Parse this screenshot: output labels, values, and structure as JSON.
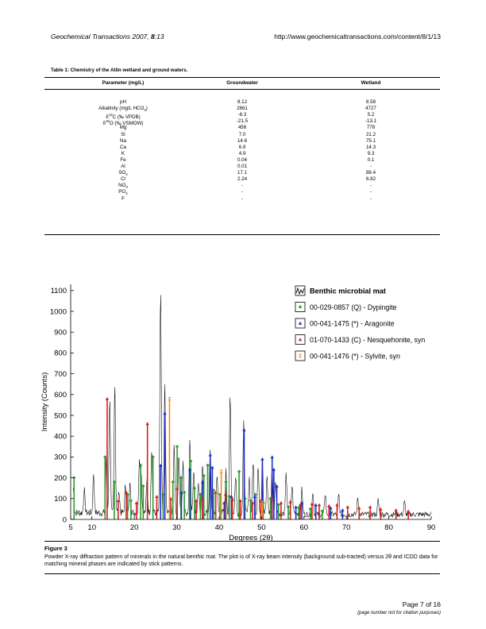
{
  "header": {
    "journal": "Geochemical Transactions",
    "year": "2007,",
    "volume": "8",
    "issue": ":13",
    "url": "http://www.geochemicaltransactions.com/content/8/1/13"
  },
  "table": {
    "caption": "Table 1: Chemistry of the Atlin wetland and ground waters.",
    "headers": [
      "Parameter (mg/L)",
      "Groundwater",
      "Wetland"
    ],
    "rows": [
      {
        "p": "pH",
        "g": "8.12",
        "w": "8.58"
      },
      {
        "p": "Alkalinity (mg/L HCO",
        "ps": "3",
        "pe": ")",
        "g": "2661",
        "w": "4727"
      },
      {
        "p": "δ",
        "pt": "13",
        "pe": "C (‰ VPDB)",
        "g": "-6.3",
        "w": "5.2"
      },
      {
        "p": "δ",
        "pt": "18",
        "pe": "O (‰ VSMOW)",
        "g": "-21.5",
        "w": "-13.1"
      },
      {
        "p": "Mg",
        "g": "456",
        "w": "778"
      },
      {
        "p": "Si",
        "g": "7.0",
        "w": "21.2"
      },
      {
        "p": "Na",
        "g": "14.6",
        "w": "75.1"
      },
      {
        "p": "Ca",
        "g": "6.9",
        "w": "14.3"
      },
      {
        "p": "K",
        "g": "4.9",
        "w": "9.3"
      },
      {
        "p": "Fe",
        "g": "0.04",
        "w": "0.1"
      },
      {
        "p": "Al",
        "g": "0.01",
        "w": "-"
      },
      {
        "p": "SO",
        "ps": "4",
        "g": "17.1",
        "w": "88.4"
      },
      {
        "p": "Cl",
        "g": "2.24",
        "w": "6.82"
      },
      {
        "p": "NO",
        "ps": "3",
        "g": "-",
        "w": "-"
      },
      {
        "p": "PO",
        "ps": "4",
        "g": "-",
        "w": "-"
      },
      {
        "p": "F",
        "g": "-",
        "w": "-"
      }
    ]
  },
  "chart_data": {
    "type": "line",
    "title": "",
    "xlabel": "Degrees (2θ)",
    "ylabel": "Intensity (Counts)",
    "xlim": [
      5,
      90
    ],
    "ylim": [
      0,
      1130
    ],
    "xticks": [
      5,
      10,
      20,
      30,
      40,
      50,
      60,
      70,
      80,
      90
    ],
    "yticks": [
      0,
      100,
      200,
      300,
      400,
      500,
      600,
      700,
      800,
      900,
      1000,
      1100
    ],
    "grid": false,
    "legend_position": "top-right",
    "colors": {
      "pattern": "#000000",
      "dypingite": "#2e9a2e",
      "aragonite": "#1f2fc8",
      "nesquehonite": "#d42020",
      "sylvite": "#f0901e"
    },
    "series": [
      {
        "name": "Benthic microbial mat",
        "kind": "pattern",
        "peaks": [
          [
            5.6,
            120
          ],
          [
            8.2,
            110
          ],
          [
            10.4,
            190
          ],
          [
            13.4,
            250
          ],
          [
            14.2,
            560
          ],
          [
            15.4,
            630
          ],
          [
            16.4,
            110
          ],
          [
            17.9,
            130
          ],
          [
            19.0,
            150
          ],
          [
            21.2,
            260
          ],
          [
            21.6,
            200
          ],
          [
            23.0,
            160
          ],
          [
            24.1,
            310
          ],
          [
            26.2,
            1080
          ],
          [
            27.2,
            620
          ],
          [
            29.4,
            330
          ],
          [
            30.5,
            290
          ],
          [
            31.5,
            240
          ],
          [
            33.1,
            370
          ],
          [
            34.0,
            210
          ],
          [
            35.1,
            150
          ],
          [
            36.1,
            230
          ],
          [
            37.9,
            300
          ],
          [
            39.5,
            190
          ],
          [
            41.6,
            200
          ],
          [
            42.6,
            560
          ],
          [
            43.9,
            180
          ],
          [
            45.8,
            430
          ],
          [
            47.1,
            170
          ],
          [
            48.0,
            250
          ],
          [
            49.2,
            220
          ],
          [
            50.2,
            270
          ],
          [
            51.3,
            170
          ],
          [
            52.5,
            230
          ],
          [
            53.3,
            150
          ],
          [
            55.8,
            190
          ],
          [
            57.2,
            130
          ],
          [
            59.5,
            110
          ],
          [
            62.1,
            110
          ],
          [
            65.0,
            100
          ],
          [
            68.2,
            95
          ],
          [
            72.7,
            80
          ],
          [
            77.5,
            70
          ],
          [
            83.7,
            60
          ]
        ],
        "baseline": 40
      },
      {
        "name": "00-029-0857 (Q) - Dypingite",
        "kind": "sticks",
        "marker": "diamond",
        "x": [
          5.8,
          13.1,
          15.3,
          18.4,
          19.2,
          21.5,
          22.1,
          24.4,
          26.8,
          29.1,
          30.1,
          31.0,
          31.8,
          33.3,
          34.2,
          35.6,
          36.4,
          37.3,
          38.7,
          40.2,
          41.6,
          42.4,
          43.1,
          44.7,
          46.1,
          47.4,
          48.5,
          50.4,
          52.1,
          54.0,
          56.3,
          58.8,
          61.5,
          64.3
        ],
        "y": [
          200,
          300,
          180,
          120,
          90,
          260,
          160,
          300,
          120,
          180,
          350,
          200,
          130,
          280,
          150,
          120,
          210,
          260,
          140,
          120,
          180,
          110,
          90,
          230,
          100,
          90,
          120,
          80,
          100,
          70,
          60,
          55,
          50,
          40
        ]
      },
      {
        "name": "00-041-1475 (*) - Aragonite",
        "kind": "sticks",
        "marker": "triangle",
        "x": [
          26.2,
          27.2,
          31.1,
          33.1,
          36.1,
          37.9,
          38.4,
          41.2,
          42.9,
          45.9,
          48.4,
          50.2,
          52.5,
          52.9,
          53.6,
          58.1,
          59.5,
          62.8,
          66.3,
          69.1
        ],
        "y": [
          260,
          510,
          130,
          240,
          180,
          310,
          250,
          80,
          110,
          430,
          110,
          290,
          300,
          240,
          160,
          60,
          80,
          70,
          55,
          45
        ]
      },
      {
        "name": "01-070-1433 (C) - Nesquehonite, syn",
        "kind": "sticks",
        "marker": "triangle",
        "x": [
          13.6,
          16.2,
          18.1,
          20.5,
          23.1,
          25.3,
          28.6,
          30.1,
          34.6,
          36.1,
          39.2,
          41.5,
          43.1,
          45.0,
          47.9,
          49.8,
          52.4,
          54.6,
          56.8,
          59.1,
          61.9,
          63.6,
          65.9,
          67.8,
          70.3,
          73.0,
          75.6,
          78.1,
          81.7,
          84.6
        ],
        "y": [
          580,
          90,
          130,
          80,
          460,
          110,
          100,
          150,
          90,
          100,
          130,
          120,
          100,
          90,
          80,
          90,
          95,
          80,
          85,
          70,
          75,
          70,
          65,
          70,
          60,
          55,
          60,
          50,
          45,
          40
        ]
      },
      {
        "name": "00-041-1476 (*) - Sylvite, syn",
        "kind": "sticks",
        "marker": "hourglass",
        "x": [
          28.3,
          40.5,
          50.2
        ],
        "y": [
          580,
          230,
          80
        ]
      }
    ]
  },
  "figure": {
    "title": "Figure 3",
    "caption": "Powder X-ray diffraction pattern of minerals in the natural benthic mat. The plot is of X-ray beam intensity (background sub-tracted) versus 2θ and ICDD data for matching mineral phases are indicated by stick patterns."
  },
  "footer": {
    "page": "Page 7 of 16",
    "note": "(page number not for citation purposes)"
  }
}
